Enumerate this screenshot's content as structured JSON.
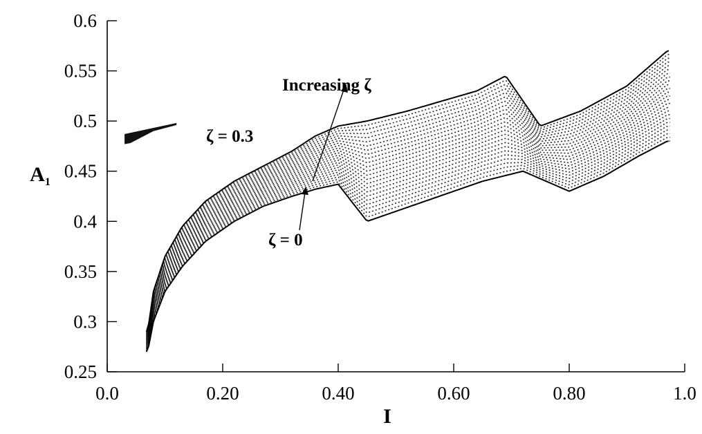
{
  "chart_data": {
    "type": "scatter",
    "title": "",
    "xlabel": "I",
    "ylabel": "A",
    "ylabel_sub": "1",
    "xlim": [
      0.0,
      1.0
    ],
    "ylim": [
      0.25,
      0.6
    ],
    "x_ticks": [
      0.0,
      0.2,
      0.4,
      0.6,
      0.8,
      1.0
    ],
    "x_tick_labels": [
      "0.0",
      "0.20",
      "0.40",
      "0.60",
      "0.80",
      "1.0"
    ],
    "y_ticks": [
      0.25,
      0.3,
      0.35,
      0.4,
      0.45,
      0.5,
      0.55,
      0.6
    ],
    "y_tick_labels": [
      "0.25",
      "0.3",
      "0.35",
      "0.4",
      "0.45",
      "0.5",
      "0.55",
      "0.6"
    ],
    "grid": false,
    "legend": "none",
    "annotations": {
      "increasing": "Increasing ζ",
      "zeta_high": "ζ = 0.3",
      "zeta_low": "ζ = 0"
    },
    "series": [
      {
        "name": "ζ = 0",
        "x": [
          0.07,
          0.08,
          0.1,
          0.13,
          0.17,
          0.22,
          0.27,
          0.32,
          0.36,
          0.4,
          0.45,
          0.55,
          0.65,
          0.72,
          0.8,
          0.86,
          0.92,
          0.97
        ],
        "y": [
          0.27,
          0.3,
          0.33,
          0.355,
          0.38,
          0.4,
          0.415,
          0.425,
          0.432,
          0.437,
          0.4,
          0.42,
          0.44,
          0.45,
          0.43,
          0.445,
          0.465,
          0.48
        ]
      },
      {
        "name": "ζ = 0.3",
        "x": [
          0.07,
          0.08,
          0.1,
          0.13,
          0.17,
          0.22,
          0.27,
          0.32,
          0.36,
          0.4,
          0.45,
          0.52,
          0.58,
          0.64,
          0.69,
          0.75,
          0.82,
          0.9,
          0.97
        ],
        "y": [
          0.29,
          0.33,
          0.365,
          0.395,
          0.42,
          0.44,
          0.455,
          0.47,
          0.485,
          0.495,
          0.5,
          0.51,
          0.52,
          0.53,
          0.545,
          0.495,
          0.51,
          0.535,
          0.57
        ]
      }
    ]
  }
}
